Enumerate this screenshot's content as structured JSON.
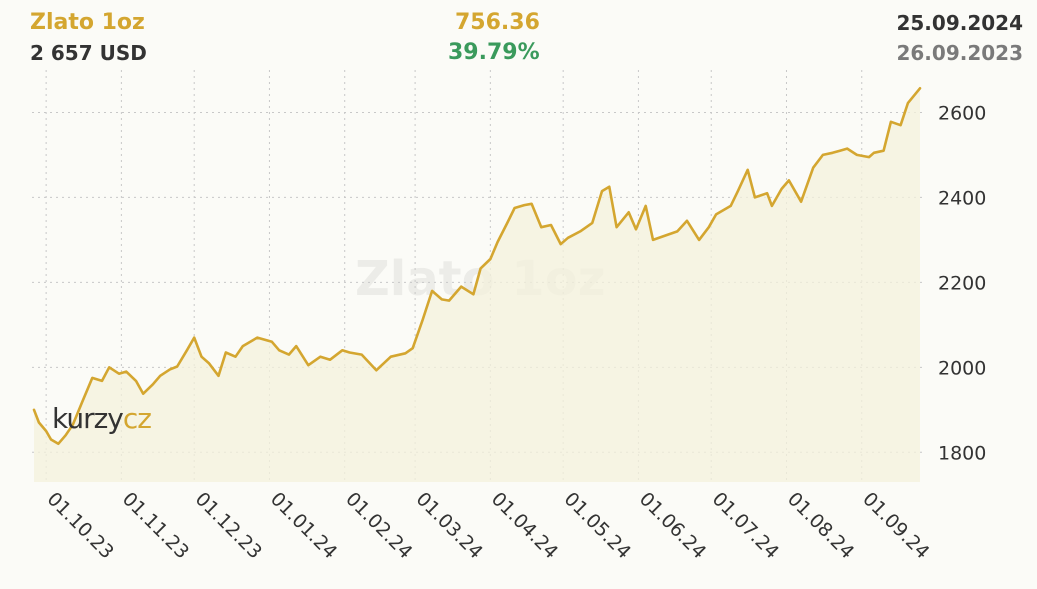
{
  "header": {
    "title": "Zlato 1oz",
    "price": "2 657 USD",
    "change_abs": "756.36",
    "change_pct": "39.79%",
    "date_to": "25.09.2024",
    "date_from": "26.09.2023"
  },
  "logo": {
    "part1": "kurzy",
    "part2": "cz"
  },
  "watermark": "Zlato 1oz",
  "colors": {
    "line": "#d4a630",
    "area": "#f4f2dc",
    "positive": "#3a9a5c",
    "text": "#333333",
    "muted": "#7a7a7a",
    "grid": "#c8c8c8"
  },
  "chart_data": {
    "type": "area",
    "xlabel": "",
    "ylabel": "",
    "ylim": [
      1730,
      2700
    ],
    "yticks": [
      1800,
      2000,
      2200,
      2400,
      2600
    ],
    "xlim": [
      "2023-09-26",
      "2024-09-25"
    ],
    "xticks": [
      "2023-10-01",
      "2023-11-01",
      "2023-12-01",
      "2024-01-01",
      "2024-02-01",
      "2024-03-01",
      "2024-04-01",
      "2024-05-01",
      "2024-06-01",
      "2024-07-01",
      "2024-08-01",
      "2024-09-01"
    ],
    "xtick_labels": [
      "01.10.23",
      "01.11.23",
      "01.12.23",
      "01.01.24",
      "01.02.24",
      "01.03.24",
      "01.04.24",
      "01.05.24",
      "01.06.24",
      "01.07.24",
      "01.08.24",
      "01.09.24"
    ],
    "grid": true,
    "series": [
      {
        "points": [
          [
            "2023-09-26",
            1900
          ],
          [
            "2023-09-28",
            1870
          ],
          [
            "2023-10-01",
            1850
          ],
          [
            "2023-10-03",
            1830
          ],
          [
            "2023-10-06",
            1820
          ],
          [
            "2023-10-09",
            1840
          ],
          [
            "2023-10-12",
            1865
          ],
          [
            "2023-10-16",
            1920
          ],
          [
            "2023-10-20",
            1975
          ],
          [
            "2023-10-24",
            1968
          ],
          [
            "2023-10-27",
            2000
          ],
          [
            "2023-10-31",
            1985
          ],
          [
            "2023-11-03",
            1990
          ],
          [
            "2023-11-07",
            1968
          ],
          [
            "2023-11-10",
            1938
          ],
          [
            "2023-11-14",
            1960
          ],
          [
            "2023-11-17",
            1980
          ],
          [
            "2023-11-21",
            1995
          ],
          [
            "2023-11-24",
            2002
          ],
          [
            "2023-11-28",
            2040
          ],
          [
            "2023-12-01",
            2070
          ],
          [
            "2023-12-04",
            2025
          ],
          [
            "2023-12-07",
            2010
          ],
          [
            "2023-12-11",
            1980
          ],
          [
            "2023-12-14",
            2035
          ],
          [
            "2023-12-18",
            2025
          ],
          [
            "2023-12-21",
            2050
          ],
          [
            "2023-12-27",
            2070
          ],
          [
            "2024-01-02",
            2060
          ],
          [
            "2024-01-05",
            2040
          ],
          [
            "2024-01-09",
            2030
          ],
          [
            "2024-01-12",
            2050
          ],
          [
            "2024-01-17",
            2005
          ],
          [
            "2024-01-22",
            2025
          ],
          [
            "2024-01-26",
            2018
          ],
          [
            "2024-01-31",
            2040
          ],
          [
            "2024-02-03",
            2035
          ],
          [
            "2024-02-08",
            2030
          ],
          [
            "2024-02-14",
            1993
          ],
          [
            "2024-02-20",
            2025
          ],
          [
            "2024-02-26",
            2033
          ],
          [
            "2024-02-29",
            2045
          ],
          [
            "2024-03-04",
            2110
          ],
          [
            "2024-03-08",
            2180
          ],
          [
            "2024-03-12",
            2160
          ],
          [
            "2024-03-15",
            2157
          ],
          [
            "2024-03-20",
            2190
          ],
          [
            "2024-03-25",
            2172
          ],
          [
            "2024-03-28",
            2233
          ],
          [
            "2024-04-01",
            2255
          ],
          [
            "2024-04-04",
            2295
          ],
          [
            "2024-04-08",
            2340
          ],
          [
            "2024-04-11",
            2375
          ],
          [
            "2024-04-15",
            2382
          ],
          [
            "2024-04-18",
            2385
          ],
          [
            "2024-04-22",
            2330
          ],
          [
            "2024-04-26",
            2335
          ],
          [
            "2024-04-30",
            2290
          ],
          [
            "2024-05-03",
            2305
          ],
          [
            "2024-05-08",
            2320
          ],
          [
            "2024-05-13",
            2340
          ],
          [
            "2024-05-17",
            2415
          ],
          [
            "2024-05-20",
            2425
          ],
          [
            "2024-05-23",
            2330
          ],
          [
            "2024-05-28",
            2365
          ],
          [
            "2024-05-31",
            2325
          ],
          [
            "2024-06-04",
            2380
          ],
          [
            "2024-06-07",
            2300
          ],
          [
            "2024-06-12",
            2310
          ],
          [
            "2024-06-17",
            2320
          ],
          [
            "2024-06-21",
            2345
          ],
          [
            "2024-06-26",
            2300
          ],
          [
            "2024-06-30",
            2330
          ],
          [
            "2024-07-03",
            2360
          ],
          [
            "2024-07-09",
            2380
          ],
          [
            "2024-07-12",
            2415
          ],
          [
            "2024-07-16",
            2465
          ],
          [
            "2024-07-19",
            2400
          ],
          [
            "2024-07-24",
            2410
          ],
          [
            "2024-07-26",
            2380
          ],
          [
            "2024-07-30",
            2420
          ],
          [
            "2024-08-02",
            2440
          ],
          [
            "2024-08-07",
            2390
          ],
          [
            "2024-08-12",
            2470
          ],
          [
            "2024-08-16",
            2500
          ],
          [
            "2024-08-20",
            2505
          ],
          [
            "2024-08-23",
            2510
          ],
          [
            "2024-08-26",
            2515
          ],
          [
            "2024-08-30",
            2500
          ],
          [
            "2024-09-04",
            2495
          ],
          [
            "2024-09-06",
            2505
          ],
          [
            "2024-09-10",
            2510
          ],
          [
            "2024-09-13",
            2578
          ],
          [
            "2024-09-17",
            2570
          ],
          [
            "2024-09-20",
            2622
          ],
          [
            "2024-09-25",
            2657
          ]
        ]
      }
    ]
  }
}
